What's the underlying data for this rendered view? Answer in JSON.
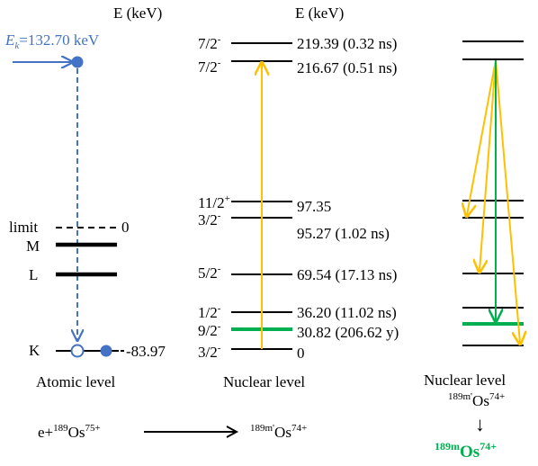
{
  "colors": {
    "atomic_blue": "#4472C4",
    "excitation_gold": "#FFC000",
    "decay_green": "#00B050",
    "ink": "#000000"
  },
  "atomic": {
    "header": "E (keV)",
    "incoming_energy_symbol": "E",
    "incoming_energy_subscript": "k",
    "incoming_energy_value": "=132.70 keV",
    "limit_label": "limit",
    "limit_energy": "0",
    "shells": [
      {
        "label": "M"
      },
      {
        "label": "L"
      },
      {
        "label": "K",
        "energy": "-83.97"
      }
    ],
    "caption": "Atomic level"
  },
  "nuclear": {
    "header": "E (keV)",
    "levels": [
      {
        "spin": "7/2",
        "parity": "-",
        "energy": "219.39 (0.32 ns)"
      },
      {
        "spin": "7/2",
        "parity": "-",
        "energy": "216.67 (0.51 ns)"
      },
      {
        "spin": "11/2",
        "parity": "+",
        "energy": "97.35"
      },
      {
        "spin": "3/2",
        "parity": "-",
        "energy": "95.27 (1.02 ns)"
      },
      {
        "spin": "5/2",
        "parity": "-",
        "energy": "69.54 (17.13 ns)"
      },
      {
        "spin": "1/2",
        "parity": "-",
        "energy": "36.20 (11.02 ns)"
      },
      {
        "spin": "9/2",
        "parity": "-",
        "energy": "30.82 (206.62 y)"
      },
      {
        "spin": "3/2",
        "parity": "-",
        "energy": "0"
      }
    ],
    "caption": "Nuclear level"
  },
  "right": {
    "caption": "Nuclear level",
    "state_mass": "189m'",
    "state_symbol": "Os",
    "state_charge": "74+",
    "arrow": "↓",
    "product_mass": "189m",
    "product_symbol": "Os",
    "product_charge": "74+"
  },
  "reaction": {
    "lhs_prefix": "e+",
    "lhs_mass": "189",
    "lhs_symbol": "Os",
    "lhs_charge": "75+",
    "rhs_mass": "189m'",
    "rhs_symbol": "Os",
    "rhs_charge": "74+"
  }
}
